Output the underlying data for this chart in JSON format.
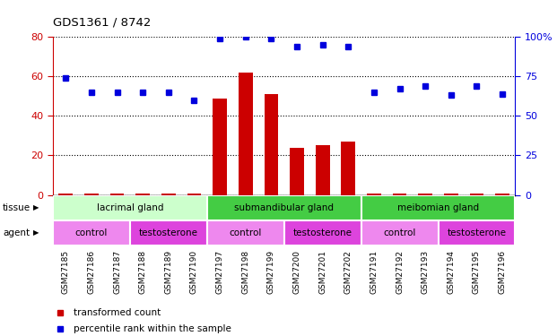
{
  "title": "GDS1361 / 8742",
  "samples": [
    "GSM27185",
    "GSM27186",
    "GSM27187",
    "GSM27188",
    "GSM27189",
    "GSM27190",
    "GSM27197",
    "GSM27198",
    "GSM27199",
    "GSM27200",
    "GSM27201",
    "GSM27202",
    "GSM27191",
    "GSM27192",
    "GSM27193",
    "GSM27194",
    "GSM27195",
    "GSM27196"
  ],
  "bar_values": [
    0.8,
    0.8,
    0.8,
    0.8,
    0.8,
    0.8,
    49,
    62,
    51,
    24,
    25,
    27,
    0.8,
    0.8,
    0.8,
    0.8,
    0.8,
    0.8
  ],
  "dot_values_pct": [
    74,
    65,
    65,
    65,
    65,
    60,
    99,
    100,
    99,
    94,
    95,
    94,
    65,
    67,
    69,
    63,
    69,
    64
  ],
  "ylim_left": [
    0,
    80
  ],
  "ylim_right": [
    0,
    100
  ],
  "yticks_left": [
    0,
    20,
    40,
    60,
    80
  ],
  "yticks_right": [
    0,
    25,
    50,
    75,
    100
  ],
  "bar_color": "#cc0000",
  "dot_color": "#0000dd",
  "tissue_groups": [
    {
      "label": "lacrimal gland",
      "start": 0,
      "end": 6,
      "color": "#ccffcc"
    },
    {
      "label": "submandibular gland",
      "start": 6,
      "end": 12,
      "color": "#44cc44"
    },
    {
      "label": "meibomian gland",
      "start": 12,
      "end": 18,
      "color": "#44cc44"
    }
  ],
  "agent_groups": [
    {
      "label": "control",
      "start": 0,
      "end": 3,
      "color": "#ee88ee"
    },
    {
      "label": "testosterone",
      "start": 3,
      "end": 6,
      "color": "#dd44dd"
    },
    {
      "label": "control",
      "start": 6,
      "end": 9,
      "color": "#ee88ee"
    },
    {
      "label": "testosterone",
      "start": 9,
      "end": 12,
      "color": "#dd44dd"
    },
    {
      "label": "control",
      "start": 12,
      "end": 15,
      "color": "#ee88ee"
    },
    {
      "label": "testosterone",
      "start": 15,
      "end": 18,
      "color": "#dd44dd"
    }
  ],
  "legend_bar_label": "transformed count",
  "legend_dot_label": "percentile rank within the sample",
  "tissue_label": "tissue",
  "agent_label": "agent",
  "sample_bg_color": "#cccccc",
  "plot_bg_color": "#ffffff",
  "spine_color": "#000000"
}
